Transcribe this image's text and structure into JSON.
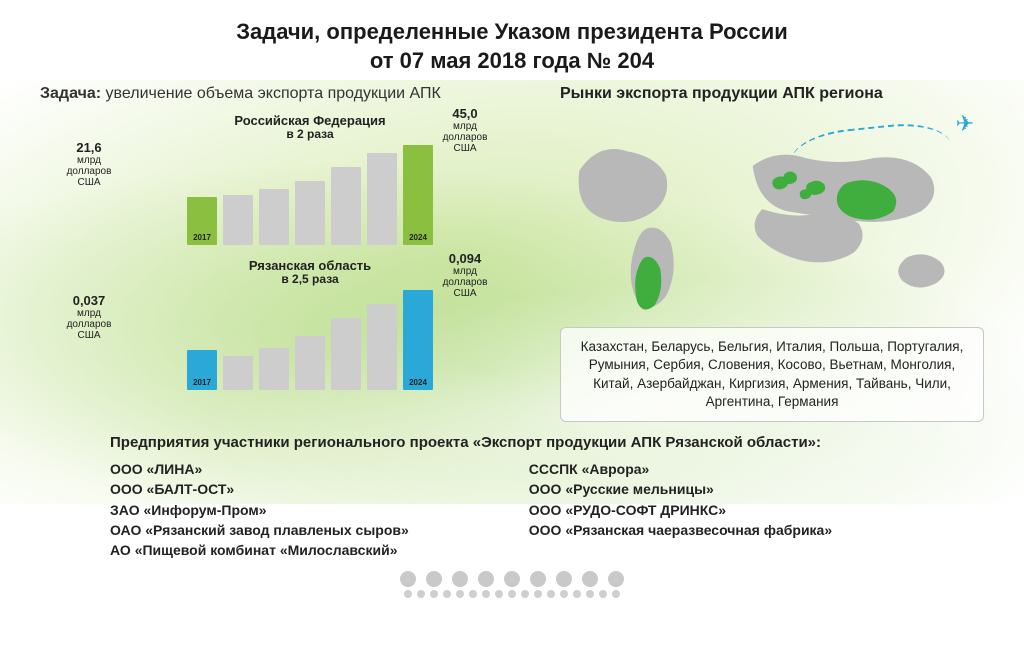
{
  "title_l1": "Задачи, определенные Указом президента России",
  "title_l2": "от 07 мая 2018 года № 204",
  "task_label": "Задача:",
  "task_text": "увеличение объема экспорта продукции АПК",
  "markets_title": "Рынки экспорта продукции АПК региона",
  "unit_label": "млрд долларов США",
  "chart_russia": {
    "title": "Российская Федерация",
    "multiplier": "в 2 раза",
    "start_value": "21,6",
    "start_year": "2017",
    "end_value": "45,0",
    "end_year": "2024",
    "bar_heights_pct": [
      48,
      50,
      56,
      64,
      78,
      92,
      100
    ],
    "bar_fills": [
      "#8bbf3f",
      "#cdcdcd",
      "#cdcdcd",
      "#cdcdcd",
      "#cdcdcd",
      "#cdcdcd",
      "#8bbf3f"
    ],
    "accent": "#8bbf3f"
  },
  "chart_ryazan": {
    "title": "Рязанская область",
    "multiplier": "в 2,5 раза",
    "start_value": "0,037",
    "start_year": "2017",
    "end_value": "0,094",
    "end_year": "2024",
    "bar_heights_pct": [
      40,
      34,
      42,
      54,
      72,
      86,
      100
    ],
    "bar_fills": [
      "#2aa8d8",
      "#cdcdcd",
      "#cdcdcd",
      "#cdcdcd",
      "#cdcdcd",
      "#cdcdcd",
      "#2aa8d8"
    ],
    "accent": "#2aa8d8"
  },
  "countries_text": "Казахстан, Беларусь, Бельгия, Италия, Польша, Португалия, Румыния, Сербия, Словения, Косово, Вьетнам, Монголия, Китай, Азербайджан, Киргизия, Армения, Тайвань, Чили, Аргентина, Германия",
  "enterprises_title": "Предприятия участники регионального проекта «Экспорт продукции АПК Рязанской области»:",
  "enterprises_left": [
    "ООО «ЛИНА»",
    "ООО «БАЛТ-ОСТ»",
    "ЗАО «Инфорум-Пром»",
    "ОАО «Рязанский завод плавленых сыров»",
    "АО «Пищевой комбинат «Милославский»"
  ],
  "enterprises_right": [
    "СССПК «Аврора»",
    "ООО «Русские мельницы»",
    "ООО «РУДО-СОФТ ДРИНКС»",
    "ООО «Рязанская чаеразвесочная фабрика»"
  ],
  "map": {
    "land_color": "#b8b8b8",
    "highlight_color": "#3fae3f",
    "background": "transparent"
  },
  "dots_big_count": 9,
  "dots_small_count": 17
}
